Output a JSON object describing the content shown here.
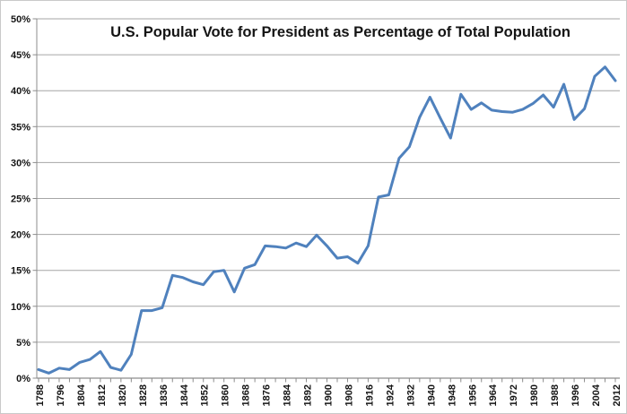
{
  "chart_data": {
    "type": "line",
    "title": "U.S. Popular Vote for President as Percentage of Total Population",
    "xlabel": "",
    "ylabel": "",
    "x": [
      1788,
      1792,
      1796,
      1800,
      1804,
      1808,
      1812,
      1816,
      1820,
      1824,
      1828,
      1832,
      1836,
      1840,
      1844,
      1848,
      1852,
      1856,
      1860,
      1864,
      1868,
      1872,
      1876,
      1880,
      1884,
      1888,
      1892,
      1896,
      1900,
      1904,
      1908,
      1912,
      1916,
      1920,
      1924,
      1928,
      1932,
      1936,
      1940,
      1944,
      1948,
      1952,
      1956,
      1960,
      1964,
      1968,
      1972,
      1976,
      1980,
      1984,
      1988,
      1992,
      1996,
      2000,
      2004,
      2008,
      2012
    ],
    "values": [
      1.2,
      0.7,
      1.4,
      1.2,
      2.2,
      2.6,
      3.7,
      1.5,
      1.1,
      3.3,
      9.4,
      9.4,
      9.8,
      14.3,
      14.0,
      13.4,
      13.0,
      14.8,
      15.0,
      12.0,
      15.3,
      15.8,
      18.4,
      18.3,
      18.1,
      18.8,
      18.3,
      19.9,
      18.4,
      16.7,
      16.9,
      16.0,
      18.4,
      25.2,
      25.5,
      30.6,
      32.2,
      36.3,
      39.1,
      36.2,
      33.4,
      39.5,
      37.4,
      38.3,
      37.3,
      37.1,
      37.0,
      37.4,
      38.2,
      39.4,
      37.7,
      40.9,
      36.0,
      37.5,
      42.0,
      43.3,
      41.4
    ],
    "ylim": [
      0,
      50
    ],
    "ytick_step": 5,
    "ytick_labels": [
      "0%",
      "5%",
      "10%",
      "15%",
      "20%",
      "25%",
      "30%",
      "35%",
      "40%",
      "45%",
      "50%"
    ],
    "xtick_labels": [
      "1788",
      "1796",
      "1804",
      "1812",
      "1820",
      "1828",
      "1836",
      "1844",
      "1852",
      "1860",
      "1868",
      "1876",
      "1884",
      "1892",
      "1900",
      "1908",
      "1916",
      "1924",
      "1932",
      "1940",
      "1948",
      "1956",
      "1964",
      "1972",
      "1980",
      "1988",
      "1996",
      "2004",
      "2012"
    ],
    "grid": "horizontal",
    "legend": "none",
    "colors": {
      "line": "#4F81BD",
      "gridline": "#A6A6A6",
      "axis": "#8C8C8C",
      "text": "#141414",
      "background": "#FFFFFF",
      "frame_border": "#C9C9C9"
    }
  }
}
